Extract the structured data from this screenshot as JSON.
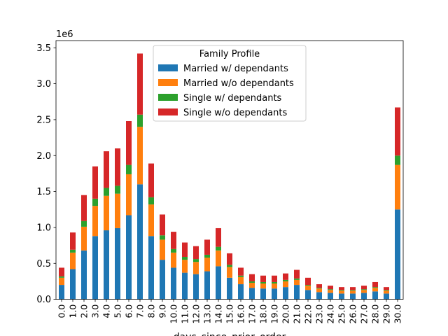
{
  "chart_data": {
    "type": "bar",
    "stacked": true,
    "xlabel": "days_since_prior_order",
    "ylabel": "",
    "offset_text": "1e6",
    "ylim": [
      0,
      3600000
    ],
    "yticks": [
      0,
      500000,
      1000000,
      1500000,
      2000000,
      2500000,
      3000000,
      3500000
    ],
    "ytick_labels": [
      "0.0",
      "0.5",
      "1.0",
      "1.5",
      "2.0",
      "2.5",
      "3.0",
      "3.5"
    ],
    "grid": false,
    "legend": {
      "title": "Family Profile",
      "placement": "top-center"
    },
    "categories": [
      "0.0",
      "1.0",
      "2.0",
      "3.0",
      "4.0",
      "5.0",
      "6.0",
      "7.0",
      "8.0",
      "9.0",
      "10.0",
      "11.0",
      "12.0",
      "13.0",
      "14.0",
      "15.0",
      "16.0",
      "17.0",
      "18.0",
      "19.0",
      "20.0",
      "21.0",
      "22.0",
      "23.0",
      "24.0",
      "25.0",
      "26.0",
      "27.0",
      "28.0",
      "29.0",
      "30.0"
    ],
    "series": [
      {
        "name": "Married w/ dependants",
        "color": "#1f77b4",
        "values": [
          200000,
          420000,
          680000,
          880000,
          960000,
          990000,
          1170000,
          1600000,
          880000,
          550000,
          440000,
          370000,
          350000,
          390000,
          460000,
          300000,
          210000,
          160000,
          150000,
          150000,
          170000,
          200000,
          130000,
          100000,
          90000,
          80000,
          80000,
          90000,
          110000,
          80000,
          1250000
        ]
      },
      {
        "name": "Married w/o dependants",
        "color": "#ff7f0e",
        "values": [
          100000,
          230000,
          330000,
          420000,
          480000,
          480000,
          570000,
          800000,
          440000,
          280000,
          210000,
          180000,
          170000,
          190000,
          220000,
          150000,
          100000,
          70000,
          70000,
          70000,
          80000,
          70000,
          60000,
          50000,
          40000,
          40000,
          40000,
          40000,
          50000,
          40000,
          620000
        ]
      },
      {
        "name": "Single w/ dependants",
        "color": "#2ca02c",
        "values": [
          20000,
          40000,
          80000,
          100000,
          110000,
          110000,
          130000,
          170000,
          100000,
          60000,
          50000,
          40000,
          40000,
          40000,
          50000,
          30000,
          20000,
          20000,
          20000,
          20000,
          20000,
          20000,
          10000,
          10000,
          10000,
          10000,
          10000,
          10000,
          10000,
          10000,
          130000
        ]
      },
      {
        "name": "Single w/o dependants",
        "color": "#d62728",
        "values": [
          120000,
          240000,
          360000,
          450000,
          510000,
          520000,
          610000,
          850000,
          470000,
          290000,
          240000,
          200000,
          180000,
          210000,
          260000,
          160000,
          110000,
          100000,
          90000,
          90000,
          90000,
          120000,
          100000,
          50000,
          50000,
          40000,
          40000,
          50000,
          70000,
          40000,
          670000
        ]
      }
    ]
  }
}
